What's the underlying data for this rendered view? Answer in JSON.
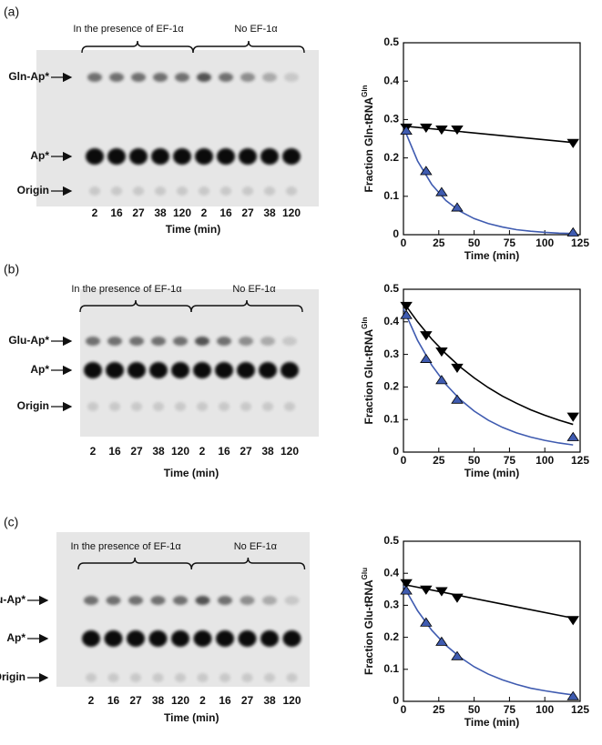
{
  "panels": [
    {
      "label": "(a)",
      "bracket_labels": [
        "In the presence of EF-1α",
        "No EF-1α"
      ],
      "bands": [
        "Gln-Ap*",
        "Ap*",
        "Origin"
      ],
      "lanes": [
        2,
        16,
        27,
        38,
        120,
        2,
        16,
        27,
        38,
        120
      ],
      "xlabel": "Time (min)"
    },
    {
      "label": "(b)",
      "bracket_labels": [
        "In the presence of EF-1α",
        "No EF-1α"
      ],
      "bands": [
        "Glu-Ap*",
        "Ap*",
        "Origin"
      ],
      "lanes": [
        2,
        16,
        27,
        38,
        120,
        2,
        16,
        27,
        38,
        120
      ],
      "xlabel": "Time (min)"
    },
    {
      "label": "(c)",
      "bracket_labels": [
        "In the presence of EF-1α",
        "No EF-1α"
      ],
      "bands": [
        "Glu-Ap*",
        "Ap*",
        "Origin"
      ],
      "lanes": [
        2,
        16,
        27,
        38,
        120,
        2,
        16,
        27,
        38,
        120
      ],
      "xlabel": "Time (min)"
    }
  ],
  "chart_data": [
    {
      "type": "scatter",
      "xlabel": "Time (min)",
      "ylabel": "Fraction Gln-tRNA",
      "ylabel_sup": "Gln",
      "xlim": [
        0,
        125
      ],
      "xticks": [
        0,
        25,
        50,
        75,
        100,
        125
      ],
      "ylim": [
        0,
        0.5
      ],
      "yticks": [
        0,
        0.1,
        0.2,
        0.3,
        0.4,
        0.5
      ],
      "series": [
        {
          "color": "#000000",
          "marker": "down-triangle",
          "x": [
            2,
            16,
            27,
            38,
            120
          ],
          "values": [
            0.28,
            0.28,
            0.275,
            0.275,
            0.24
          ]
        },
        {
          "color": "#3f5bb0",
          "marker": "up-triangle",
          "x": [
            2,
            16,
            27,
            38,
            120
          ],
          "values": [
            0.27,
            0.165,
            0.11,
            0.07,
            0.005
          ]
        }
      ],
      "curves": [
        {
          "color": "#000000",
          "x": [
            0,
            120
          ],
          "values": [
            0.283,
            0.24
          ]
        },
        {
          "color": "#3f5bb0",
          "x": [
            0,
            10,
            20,
            30,
            40,
            50,
            60,
            70,
            80,
            90,
            100,
            110,
            120
          ],
          "values": [
            0.28,
            0.192,
            0.131,
            0.089,
            0.061,
            0.042,
            0.029,
            0.02,
            0.013,
            0.009,
            0.006,
            0.004,
            0.003
          ]
        }
      ]
    },
    {
      "type": "scatter",
      "xlabel": "Time (min)",
      "ylabel": "Fraction Glu-tRNA",
      "ylabel_sup": "Gln",
      "xlim": [
        0,
        125
      ],
      "xticks": [
        0,
        25,
        50,
        75,
        100,
        125
      ],
      "ylim": [
        0,
        0.5
      ],
      "yticks": [
        0,
        0.1,
        0.2,
        0.3,
        0.4,
        0.5
      ],
      "series": [
        {
          "color": "#000000",
          "marker": "down-triangle",
          "x": [
            2,
            16,
            27,
            38,
            120
          ],
          "values": [
            0.45,
            0.36,
            0.31,
            0.26,
            0.11
          ]
        },
        {
          "color": "#3f5bb0",
          "marker": "up-triangle",
          "x": [
            2,
            16,
            27,
            38,
            120
          ],
          "values": [
            0.42,
            0.285,
            0.22,
            0.16,
            0.045
          ]
        }
      ],
      "curves": [
        {
          "color": "#000000",
          "x": [
            0,
            10,
            20,
            30,
            40,
            50,
            60,
            70,
            80,
            90,
            100,
            110,
            120
          ],
          "values": [
            0.46,
            0.4,
            0.347,
            0.302,
            0.262,
            0.228,
            0.198,
            0.172,
            0.15,
            0.13,
            0.113,
            0.098,
            0.085
          ]
        },
        {
          "color": "#3f5bb0",
          "x": [
            0,
            10,
            20,
            30,
            40,
            50,
            60,
            70,
            80,
            90,
            100,
            110,
            120
          ],
          "values": [
            0.44,
            0.343,
            0.267,
            0.208,
            0.162,
            0.126,
            0.098,
            0.076,
            0.059,
            0.046,
            0.036,
            0.028,
            0.022
          ]
        }
      ]
    },
    {
      "type": "scatter",
      "xlabel": "Time (min)",
      "ylabel": "Fraction Glu-tRNA",
      "ylabel_sup": "Glu",
      "xlim": [
        0,
        125
      ],
      "xticks": [
        0,
        25,
        50,
        75,
        100,
        125
      ],
      "ylim": [
        0,
        0.5
      ],
      "yticks": [
        0,
        0.1,
        0.2,
        0.3,
        0.4,
        0.5
      ],
      "series": [
        {
          "color": "#000000",
          "marker": "down-triangle",
          "x": [
            2,
            16,
            27,
            38,
            120
          ],
          "values": [
            0.37,
            0.35,
            0.345,
            0.325,
            0.255
          ]
        },
        {
          "color": "#3f5bb0",
          "marker": "up-triangle",
          "x": [
            2,
            16,
            27,
            38,
            120
          ],
          "values": [
            0.345,
            0.245,
            0.185,
            0.14,
            0.015
          ]
        }
      ],
      "curves": [
        {
          "color": "#000000",
          "x": [
            0,
            40,
            80,
            120
          ],
          "values": [
            0.365,
            0.33,
            0.295,
            0.26
          ]
        },
        {
          "color": "#3f5bb0",
          "x": [
            0,
            10,
            20,
            30,
            40,
            50,
            60,
            70,
            80,
            90,
            100,
            110,
            120
          ],
          "values": [
            0.36,
            0.283,
            0.222,
            0.175,
            0.138,
            0.108,
            0.085,
            0.067,
            0.053,
            0.041,
            0.033,
            0.026,
            0.02
          ]
        }
      ]
    }
  ]
}
